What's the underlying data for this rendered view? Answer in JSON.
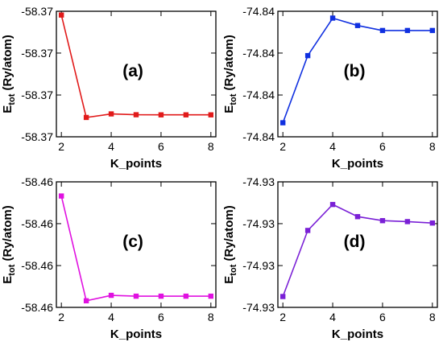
{
  "chart_data": [
    {
      "type": "line",
      "panel_label": "(a)",
      "xlabel": "K_points",
      "ylabel_main": "E",
      "ylabel_sub": "tot",
      "ylabel_rest": " (Ry/atom)",
      "color": "#e11a1a",
      "x": [
        2,
        3,
        4,
        5,
        6,
        7,
        8
      ],
      "y_norm": [
        0.0,
        0.868,
        0.838,
        0.845,
        0.846,
        0.846,
        0.846
      ],
      "xticks": [
        2,
        4,
        6,
        8
      ],
      "yticks": [
        "-58.37",
        "-58.37",
        "-58.37",
        "-58.37"
      ],
      "grid": false
    },
    {
      "type": "line",
      "panel_label": "(b)",
      "xlabel": "K_points",
      "ylabel_main": "E",
      "ylabel_sub": "tot",
      "ylabel_rest": " (Ry/atom)",
      "color": "#1030e0",
      "x": [
        2,
        3,
        4,
        5,
        6,
        7,
        8
      ],
      "y_norm": [
        0.913,
        0.344,
        0.026,
        0.089,
        0.131,
        0.131,
        0.131
      ],
      "xticks": [
        2,
        4,
        6,
        8
      ],
      "yticks": [
        "-74.84",
        "-74.84",
        "-74.84",
        "-74.84"
      ],
      "grid": false
    },
    {
      "type": "line",
      "panel_label": "(c)",
      "xlabel": "K_points",
      "ylabel_main": "E",
      "ylabel_sub": "tot",
      "ylabel_rest": " (Ry/atom)",
      "color": "#e011e0",
      "x": [
        2,
        3,
        4,
        5,
        6,
        7,
        8
      ],
      "y_norm": [
        0.088,
        0.976,
        0.93,
        0.937,
        0.937,
        0.937,
        0.937
      ],
      "xticks": [
        2,
        4,
        6,
        8
      ],
      "yticks": [
        "-58.46",
        "-58.46",
        "-58.46",
        "-58.46"
      ],
      "grid": false
    },
    {
      "type": "line",
      "panel_label": "(d)",
      "xlabel": "K_points",
      "ylabel_main": "E",
      "ylabel_sub": "tot",
      "ylabel_rest": " (Ry/atom)",
      "color": "#7a20d6",
      "x": [
        2,
        3,
        4,
        5,
        6,
        7,
        8
      ],
      "y_norm": [
        0.94,
        0.38,
        0.16,
        0.263,
        0.297,
        0.305,
        0.317
      ],
      "xticks": [
        2,
        4,
        6,
        8
      ],
      "yticks": [
        "-74.93",
        "-74.93",
        "-74.93",
        "-74.93"
      ],
      "grid": false
    }
  ]
}
